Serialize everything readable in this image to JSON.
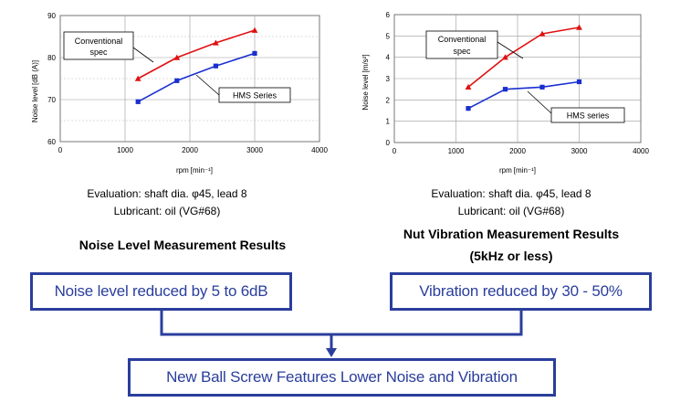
{
  "chart_data": [
    {
      "type": "line",
      "title": "Noise Level Measurement Results",
      "xlabel": "rpm",
      "xlabel_unit": "min⁻¹",
      "ylabel": "Noise level",
      "ylabel_unit": "dB (A)",
      "xlim": [
        0,
        4000
      ],
      "ylim": [
        60,
        90
      ],
      "xticks": [
        "0",
        "1000",
        "2000",
        "3000",
        "4000"
      ],
      "yticks": [
        "60",
        "70",
        "80",
        "90"
      ],
      "grid": true,
      "series": [
        {
          "name": "Conventional spec",
          "color": "#e01010",
          "marker": "triangle",
          "x": [
            1200,
            1800,
            2400,
            3000
          ],
          "y": [
            75,
            80,
            83.5,
            86.5
          ]
        },
        {
          "name": "HMS Series",
          "color": "#1a2fd0",
          "marker": "square",
          "x": [
            1200,
            1800,
            2400,
            3000
          ],
          "y": [
            69.5,
            74.5,
            78,
            81
          ]
        }
      ]
    },
    {
      "type": "line",
      "title": "Nut Vibration Measurement Results",
      "subtitle": "(5kHz or less)",
      "xlabel": "rpm",
      "xlabel_unit": "min⁻¹",
      "ylabel": "Noise level",
      "ylabel_unit": "m/s²",
      "xlim": [
        0,
        4000
      ],
      "ylim": [
        0,
        6
      ],
      "xticks": [
        "0",
        "1000",
        "2000",
        "3000",
        "4000"
      ],
      "yticks": [
        "0",
        "1",
        "2",
        "3",
        "4",
        "5",
        "6"
      ],
      "grid": true,
      "series": [
        {
          "name": "Conventional spec",
          "color": "#e01010",
          "marker": "triangle",
          "x": [
            1200,
            1800,
            2400,
            3000
          ],
          "y": [
            2.6,
            4.0,
            5.1,
            5.4
          ]
        },
        {
          "name": "HMS series",
          "color": "#1a2fd0",
          "marker": "square",
          "x": [
            1200,
            1800,
            2400,
            3000
          ],
          "y": [
            1.6,
            2.5,
            2.6,
            2.85
          ]
        }
      ]
    }
  ],
  "legend_labels": {
    "left_conventional_line1": "Conventional",
    "left_conventional_line2": "spec",
    "left_hms": "HMS Series",
    "right_conventional_line1": "Conventional",
    "right_conventional_line2": "spec",
    "right_hms": "HMS series"
  },
  "captions": {
    "left_eval": "Evaluation: shaft dia. φ45, lead 8",
    "left_lubricant": "Lubricant: oil (VG#68)",
    "right_eval": "Evaluation: shaft dia. φ45, lead 8",
    "right_lubricant": "Lubricant: oil (VG#68)"
  },
  "titles": {
    "left": "Noise Level Measurement Results",
    "right_line1": "Nut Vibration Measurement Results",
    "right_line2": "(5kHz or less)"
  },
  "results": {
    "noise": "Noise level reduced by 5 to 6dB",
    "vibration": "Vibration reduced by 30 - 50%",
    "conclusion": "New Ball Screw Features Lower Noise and Vibration"
  },
  "colors": {
    "conventional": "#e01010",
    "hms": "#1a2fd0",
    "box_border": "#2a3e9c",
    "box_text": "#2a3e9c",
    "connector": "#2a3e9c"
  }
}
